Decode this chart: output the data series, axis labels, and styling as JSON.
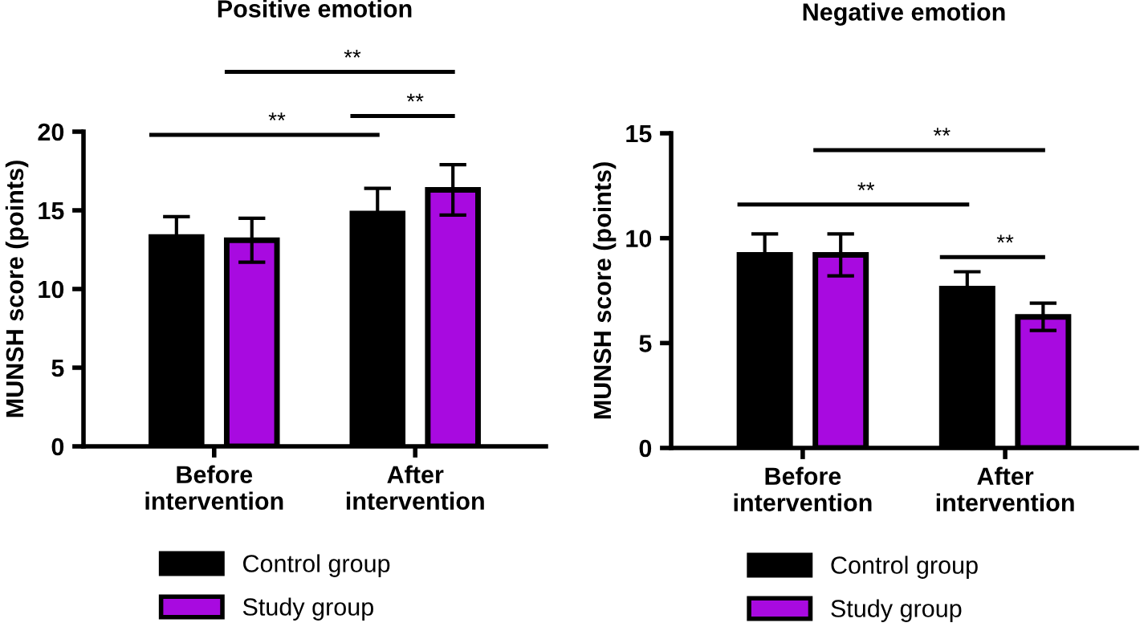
{
  "chart_data": [
    {
      "type": "bar",
      "title": "Positive emotion",
      "ylabel": "MUNSH score (points)",
      "categories": [
        "Before\nintervention",
        "After\nintervention"
      ],
      "series": [
        {
          "name": "Control group",
          "color": "#000000",
          "values": [
            13.3,
            14.8
          ],
          "errors": [
            1.3,
            1.6
          ]
        },
        {
          "name": "Study group",
          "color": "#a80ae0",
          "values": [
            13.1,
            16.3
          ],
          "errors": [
            1.4,
            1.6
          ]
        }
      ],
      "ylim": [
        0,
        20
      ],
      "yticks": [
        0,
        5,
        10,
        15,
        20
      ],
      "grid": false,
      "legend": "bottom left",
      "annotations": [
        "**",
        "**",
        "**"
      ]
    },
    {
      "type": "bar",
      "title": "Negative emotion",
      "ylabel": "MUNSH score (points)",
      "categories": [
        "Before\nintervention",
        "After\nintervention"
      ],
      "series": [
        {
          "name": "Control group",
          "color": "#000000",
          "values": [
            9.2,
            7.6
          ],
          "errors": [
            1.0,
            0.8
          ]
        },
        {
          "name": "Study group",
          "color": "#a80ae0",
          "values": [
            9.2,
            6.25
          ],
          "errors": [
            1.0,
            0.65
          ]
        }
      ],
      "ylim": [
        0,
        15
      ],
      "yticks": [
        0,
        5,
        10,
        15
      ],
      "grid": false,
      "legend": "bottom left",
      "annotations": [
        "**",
        "**",
        "**"
      ]
    }
  ]
}
